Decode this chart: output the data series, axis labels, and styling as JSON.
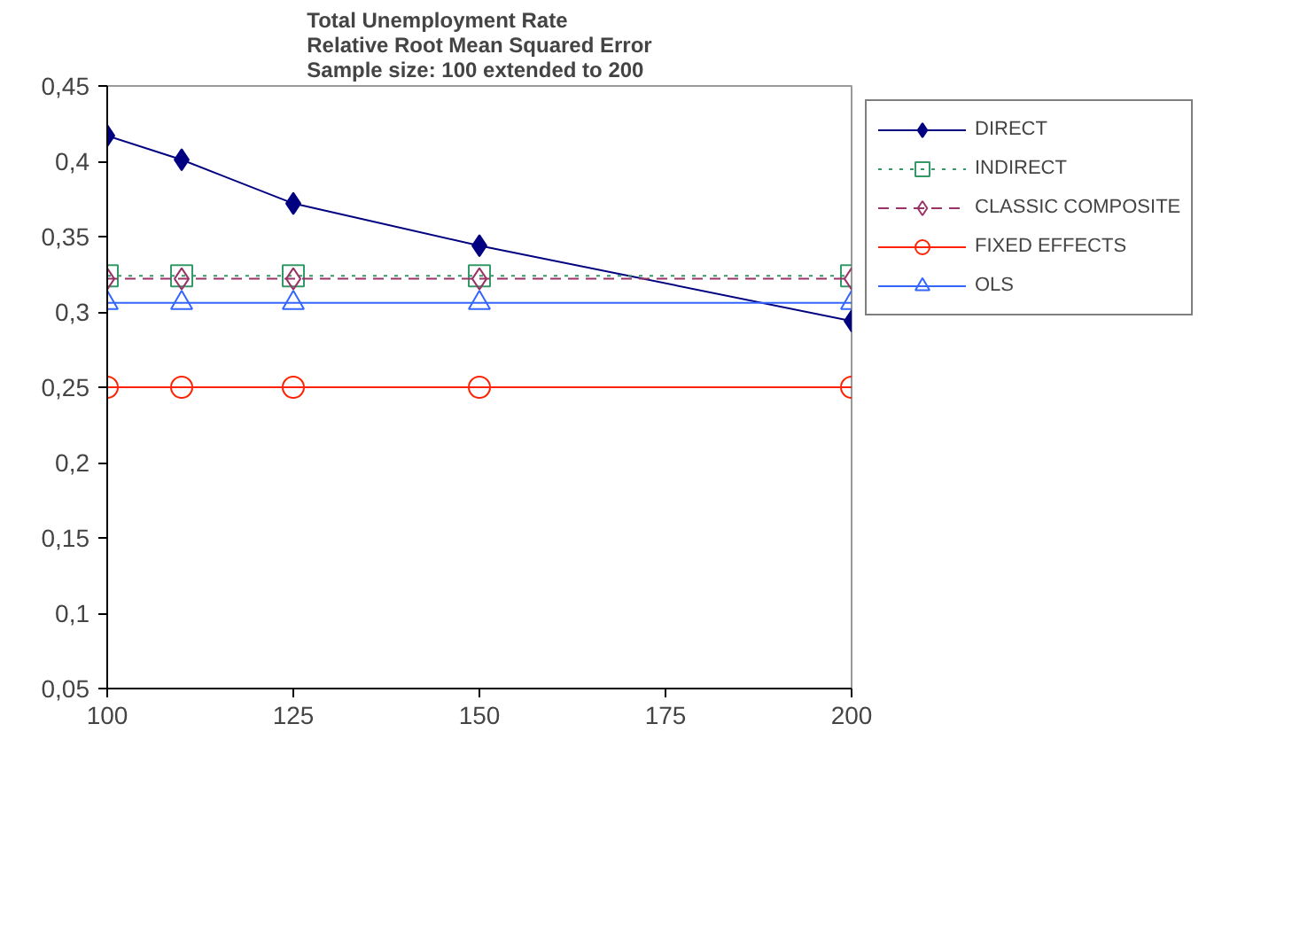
{
  "chart_data": {
    "type": "line",
    "title": "Total Unemployment Rate\nRelative Root Mean Squared Error\nSample size: 100 extended to 200",
    "x": [
      100,
      110,
      125,
      150,
      200
    ],
    "xlim": [
      100,
      200
    ],
    "xticks": [
      100,
      125,
      150,
      175,
      200
    ],
    "ylim": [
      0.05,
      0.45
    ],
    "yticks": [
      {
        "value": 0.05,
        "label": "0,05"
      },
      {
        "value": 0.1,
        "label": "0,1"
      },
      {
        "value": 0.15,
        "label": "0,15"
      },
      {
        "value": 0.2,
        "label": "0,2"
      },
      {
        "value": 0.25,
        "label": "0,25"
      },
      {
        "value": 0.3,
        "label": "0,3"
      },
      {
        "value": 0.35,
        "label": "0,35"
      },
      {
        "value": 0.4,
        "label": "0,4"
      },
      {
        "value": 0.45,
        "label": "0,45"
      }
    ],
    "grid": false,
    "legend": "right",
    "series": [
      {
        "name": "DIRECT",
        "color": "#000080",
        "marker": "diamond",
        "line_style": "solid",
        "values": [
          0.417,
          0.401,
          0.372,
          0.344,
          0.294
        ]
      },
      {
        "name": "INDIRECT",
        "color": "#339966",
        "marker": "square",
        "line_style": "dotted",
        "values": [
          0.324,
          0.324,
          0.324,
          0.324,
          0.324
        ]
      },
      {
        "name": "CLASSIC COMPOSITE",
        "color": "#993366",
        "marker": "diamond",
        "line_style": "dashed",
        "values": [
          0.322,
          0.322,
          0.322,
          0.322,
          0.322
        ]
      },
      {
        "name": "FIXED EFFECTS",
        "color": "#ff2200",
        "marker": "circle",
        "line_style": "solid",
        "values": [
          0.25,
          0.25,
          0.25,
          0.25,
          0.25
        ]
      },
      {
        "name": "OLS",
        "color": "#3366ff",
        "marker": "triangle",
        "line_style": "solid",
        "values": [
          0.306,
          0.306,
          0.306,
          0.306,
          0.306
        ]
      }
    ]
  }
}
